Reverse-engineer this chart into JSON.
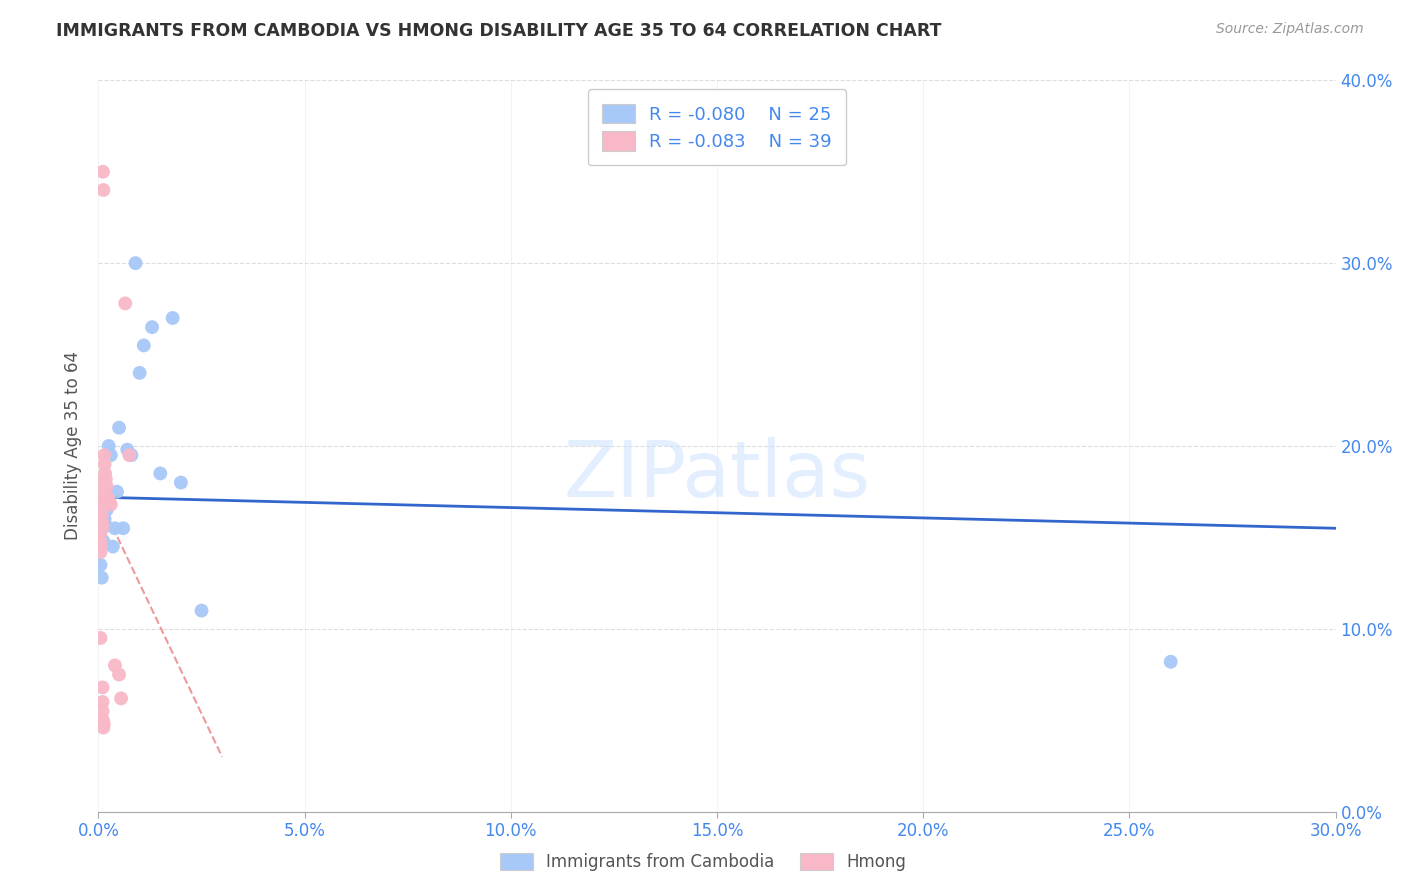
{
  "title": "IMMIGRANTS FROM CAMBODIA VS HMONG DISABILITY AGE 35 TO 64 CORRELATION CHART",
  "source": "Source: ZipAtlas.com",
  "ylabel_label": "Disability Age 35 to 64",
  "xlim": [
    0.0,
    0.3
  ],
  "ylim": [
    0.0,
    0.4
  ],
  "watermark": "ZIPatlas",
  "legend_label1": "Immigrants from Cambodia",
  "legend_label2": "Hmong",
  "r1": "-0.080",
  "n1": "25",
  "r2": "-0.083",
  "n2": "39",
  "cambodia_x": [
    0.0005,
    0.0008,
    0.001,
    0.0012,
    0.0015,
    0.0018,
    0.002,
    0.0025,
    0.003,
    0.0035,
    0.004,
    0.0045,
    0.005,
    0.006,
    0.007,
    0.008,
    0.009,
    0.01,
    0.011,
    0.013,
    0.015,
    0.018,
    0.02,
    0.025,
    0.26
  ],
  "cambodia_y": [
    0.135,
    0.128,
    0.155,
    0.148,
    0.16,
    0.175,
    0.165,
    0.2,
    0.195,
    0.145,
    0.155,
    0.175,
    0.21,
    0.155,
    0.198,
    0.195,
    0.3,
    0.24,
    0.255,
    0.265,
    0.185,
    0.27,
    0.18,
    0.11,
    0.082
  ],
  "hmong_x": [
    0.0001,
    0.0002,
    0.0002,
    0.0003,
    0.0003,
    0.0004,
    0.0004,
    0.0005,
    0.0005,
    0.0005,
    0.0006,
    0.0006,
    0.0007,
    0.0007,
    0.0008,
    0.0008,
    0.0009,
    0.0009,
    0.001,
    0.001,
    0.001,
    0.0011,
    0.0011,
    0.0012,
    0.0012,
    0.0013,
    0.0014,
    0.0015,
    0.0016,
    0.0018,
    0.002,
    0.0022,
    0.0025,
    0.003,
    0.004,
    0.005,
    0.0055,
    0.0065,
    0.0075
  ],
  "hmong_y": [
    0.17,
    0.165,
    0.162,
    0.158,
    0.155,
    0.152,
    0.148,
    0.145,
    0.142,
    0.095,
    0.18,
    0.175,
    0.172,
    0.168,
    0.165,
    0.162,
    0.158,
    0.155,
    0.068,
    0.06,
    0.055,
    0.05,
    0.35,
    0.34,
    0.046,
    0.048,
    0.195,
    0.19,
    0.185,
    0.182,
    0.178,
    0.172,
    0.17,
    0.168,
    0.08,
    0.075,
    0.062,
    0.278,
    0.195
  ],
  "color_cambodia": "#a8c8f8",
  "color_hmong": "#f8b8c8",
  "trendline_cambodia_color": "#3366cc",
  "trendline_hmong_color": "#ee9999",
  "grid_color": "#dddddd",
  "axis_color": "#aaaaaa",
  "title_color": "#333333",
  "tick_color": "#4488ee",
  "source_color": "#999999",
  "ylabel_color": "#555555"
}
